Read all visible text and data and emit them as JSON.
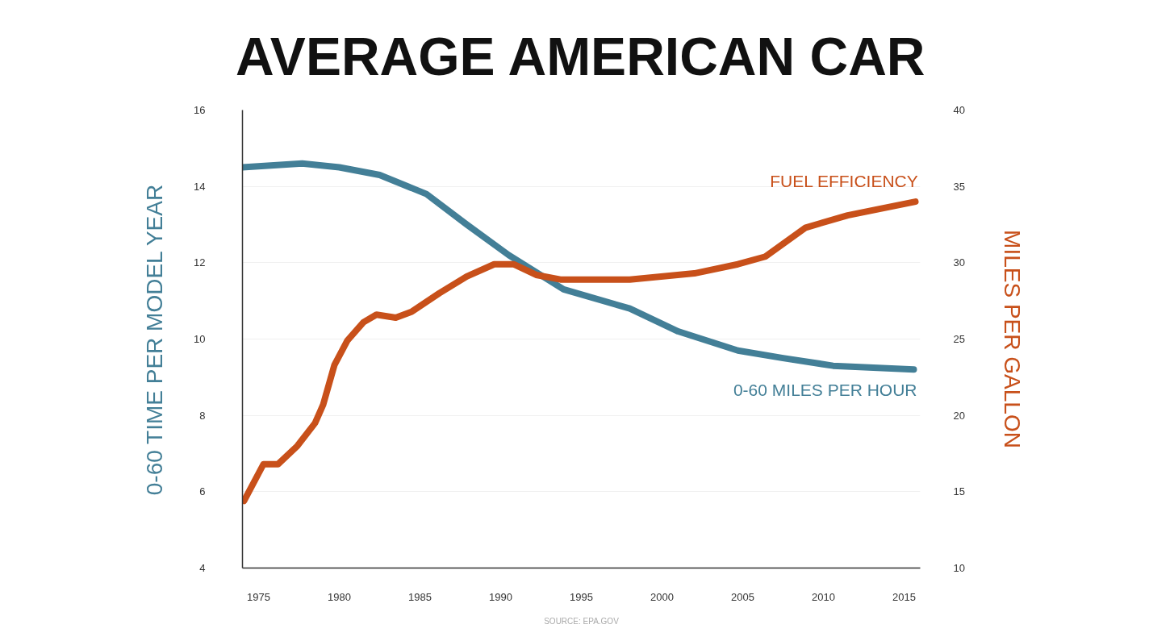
{
  "chart_data": {
    "type": "line",
    "title": "AVERAGE AMERICAN CAR",
    "ylabel": "0-60 TIME PER MODEL YEAR",
    "y2label": "MILES PER GALLON",
    "annotations": [
      "SOURCE: EPA.GOV"
    ],
    "xlim": [
      1974,
      2016
    ],
    "xticks": [
      1975,
      1980,
      1985,
      1990,
      1995,
      2000,
      2005,
      2010,
      2015
    ],
    "ylim": [
      4,
      16
    ],
    "yticks": [
      4,
      6,
      8,
      10,
      12,
      14,
      16
    ],
    "y2lim": [
      10,
      40
    ],
    "y2ticks": [
      10,
      15,
      20,
      25,
      30,
      35,
      40
    ],
    "grid": "y",
    "line_style": "solid",
    "marker": "none",
    "series": [
      {
        "name": "0-60 MILES PER HOUR",
        "color": "#437f97",
        "x": [
          1974,
          1977.7,
          1980,
          1982.5,
          1985.4,
          1987.9,
          1990.5,
          1993.9,
          1998,
          2001,
          2004.7,
          2007.5,
          2010.6,
          2015.6
        ],
        "values": [
          14.5,
          14.6,
          14.5,
          14.3,
          13.8,
          13.0,
          12.2,
          11.3,
          10.8,
          10.2,
          9.7,
          9.5,
          9.3,
          9.2
        ]
      },
      {
        "name": "FUEL EFFICIENCY",
        "color": "#c8501a",
        "axis": "y2",
        "x": [
          1974.1,
          1975.3,
          1976.2,
          1977.4,
          1978.5,
          1979,
          1979.7,
          1980.5,
          1981.5,
          1982.3,
          1983.5,
          1984.5,
          1986.2,
          1987.9,
          1989.6,
          1990.8,
          1992.2,
          1993.7,
          1998,
          2002,
          2004.7,
          2006.4,
          2008.9,
          2011.5,
          2015.7
        ],
        "values": [
          14.4,
          16.8,
          16.8,
          18.0,
          19.5,
          20.7,
          23.3,
          24.9,
          26.1,
          26.6,
          26.4,
          26.8,
          28.0,
          29.1,
          29.9,
          29.9,
          29.2,
          28.9,
          28.9,
          29.3,
          29.9,
          30.4,
          32.3,
          33.1,
          34.0
        ]
      }
    ]
  }
}
